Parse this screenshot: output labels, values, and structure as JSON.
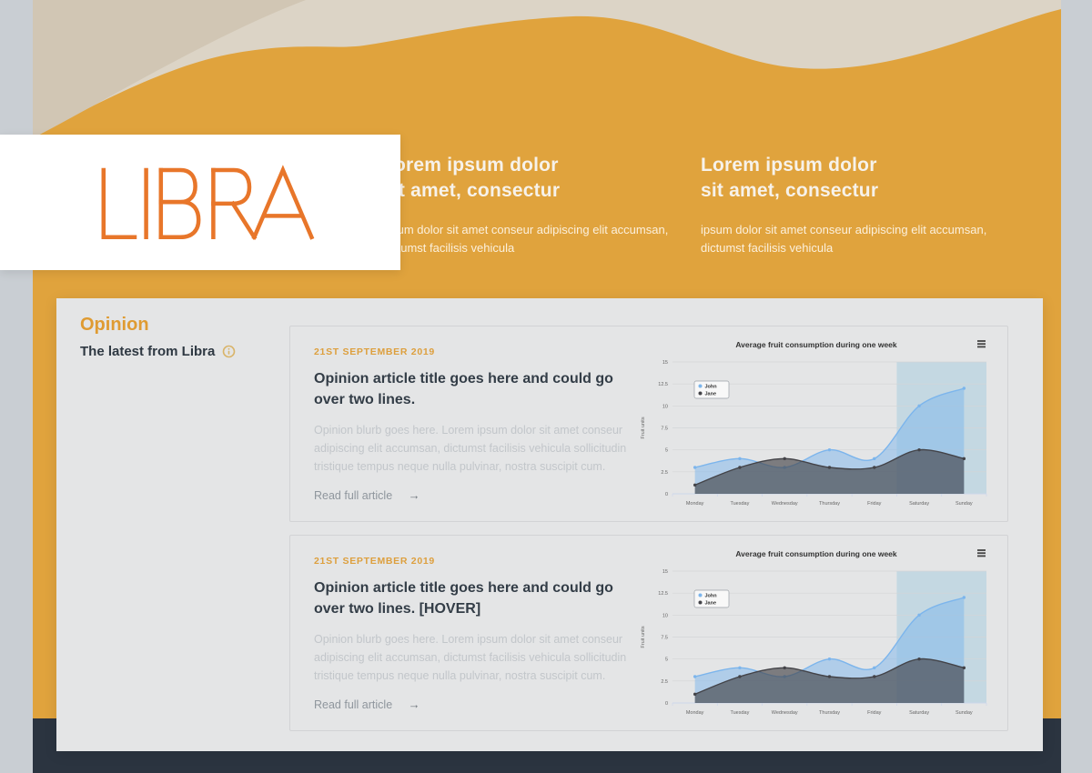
{
  "brand": {
    "logo_text": "LIBRA"
  },
  "hero": {
    "columns": [
      {
        "heading": "Lorem ipsum dolor\nsit amet, consectur",
        "body": "ipsum dolor sit amet conseur adipiscing elit accumsan, dictumst facilisis vehicula"
      },
      {
        "heading": "Lorem ipsum dolor\nsit amet, consectur",
        "body": "ipsum dolor sit amet conseur adipiscing elit accumsan, dictumst facilisis vehicula"
      }
    ]
  },
  "opinion": {
    "title": "Opinion",
    "subtitle": "The latest from Libra",
    "articles": [
      {
        "date": "21ST SEPTEMBER 2019",
        "title": "Opinion article title goes here and could go over two lines.",
        "blurb": "Opinion blurb goes here. Lorem ipsum dolor sit amet conseur adipiscing elit accumsan, dictumst facilisis vehicula sollicitudin tristique tempus neque nulla pulvinar, nostra suscipit cum.",
        "link_label": "Read full article",
        "link_arrow": "→"
      },
      {
        "date": "21ST SEPTEMBER 2019",
        "title": "Opinion article title goes here and could go over two lines. [HOVER]",
        "blurb": "Opinion blurb goes here. Lorem ipsum dolor sit amet conseur adipiscing elit accumsan, dictumst facilisis vehicula sollicitudin tristique tempus neque nulla pulvinar, nostra suscipit cum.",
        "link_label": "Read full article",
        "link_arrow": "→"
      }
    ]
  },
  "colors": {
    "banner_orange": "#e0a33d",
    "beige_light": "#dcd4c6",
    "beige_dark": "#d1c6b4",
    "frame_gray": "#c9ced3",
    "footer_navy": "#2b3440",
    "logo_orange": "#e8762a",
    "accent_orange": "#df9b32",
    "card_bg": "#e4e5e6"
  },
  "chart_data": {
    "type": "area",
    "title": "Average fruit consumption during one week",
    "xlabel": "",
    "ylabel": "Fruit units",
    "categories": [
      "Monday",
      "Tuesday",
      "Wednesday",
      "Thursday",
      "Friday",
      "Saturday",
      "Sunday"
    ],
    "series": [
      {
        "name": "John",
        "color": "#7cb5ec",
        "values": [
          3,
          4,
          3,
          5,
          4,
          10,
          12
        ]
      },
      {
        "name": "Jane",
        "color": "#434348",
        "values": [
          1,
          3,
          4,
          3,
          3,
          5,
          4
        ]
      }
    ],
    "ylim": [
      0,
      15
    ],
    "yticks": [
      0,
      2.5,
      5,
      7.5,
      10,
      12.5,
      15
    ],
    "plot_band": {
      "from": 4.5,
      "to": 6.5,
      "color": "#7ab8d9",
      "opacity": 0.3
    },
    "legend_position": "top-left-floating",
    "grid": true,
    "export_menu_icon": "hamburger-icon"
  }
}
